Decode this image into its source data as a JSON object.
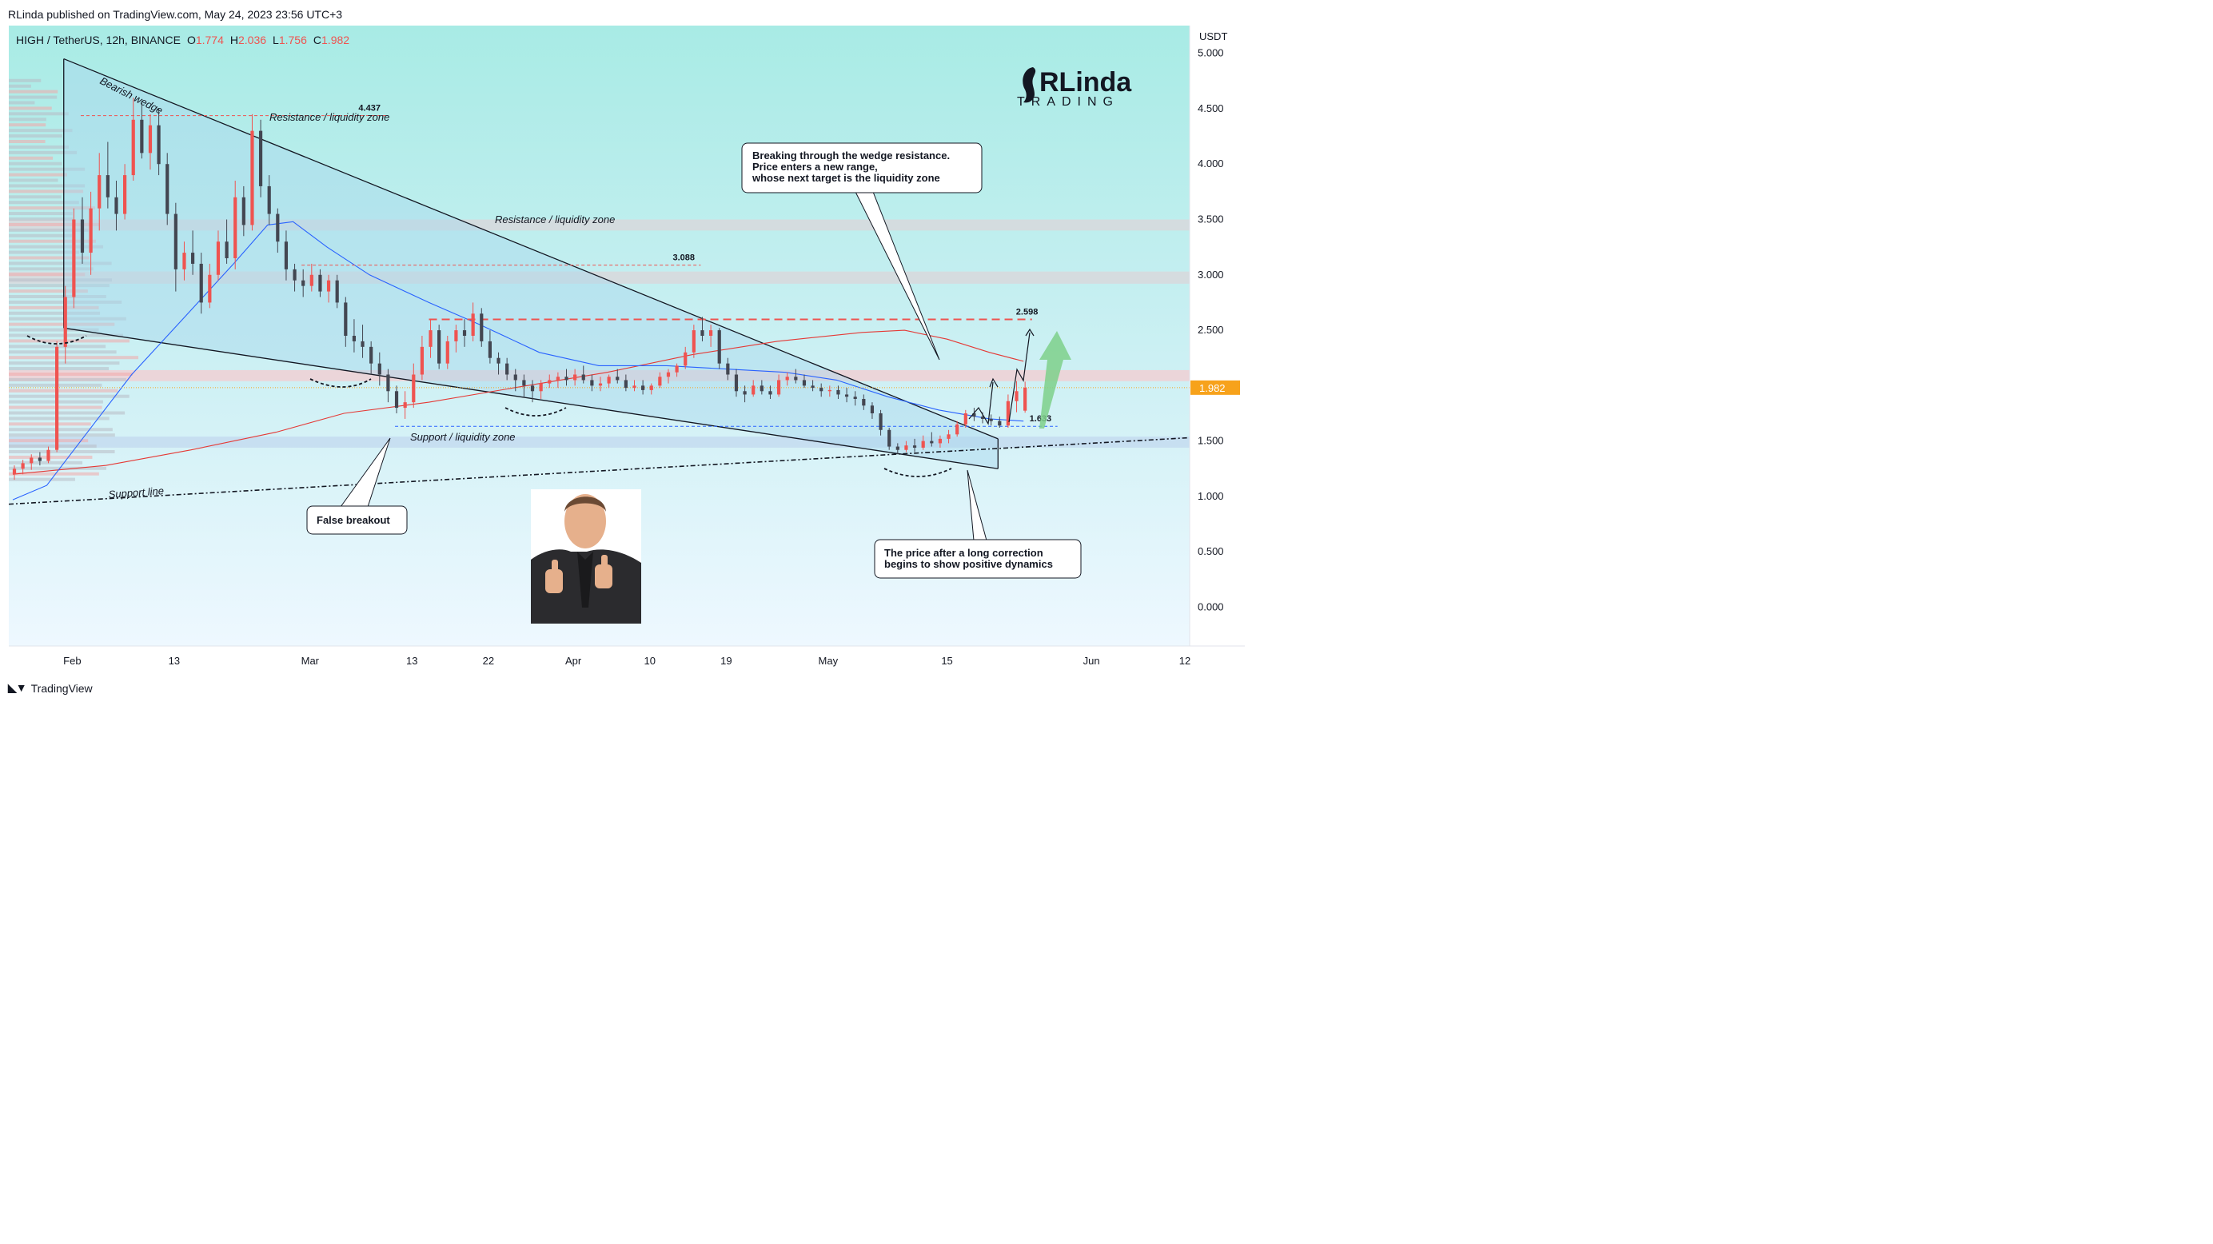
{
  "header": {
    "published": "RLinda published on TradingView.com, May 24, 2023 23:56 UTC+3"
  },
  "footer": {
    "brand": "TradingView"
  },
  "logo": {
    "top": "RLinda",
    "bottom": "TRADING"
  },
  "chart_data": {
    "type": "candlestick",
    "symbol": "HIGH / TetherUS, 12h, BINANCE",
    "ohlc_label": {
      "o_key": "O",
      "o": "1.774",
      "h_key": "H",
      "h": "2.036",
      "l_key": "L",
      "l": "1.756",
      "c_key": "C",
      "c": "1.982"
    },
    "currency": "USDT",
    "ylim": [
      -0.35,
      5.25
    ],
    "y_ticks": [
      "5.000",
      "4.500",
      "4.000",
      "3.500",
      "3.000",
      "2.500",
      "2.000",
      "1.500",
      "1.000",
      "0.500",
      "0.000"
    ],
    "x_ticks": [
      {
        "label": "Feb",
        "date": "2023-02-01"
      },
      {
        "label": "13",
        "date": "2023-02-13"
      },
      {
        "label": "Mar",
        "date": "2023-03-01"
      },
      {
        "label": "13",
        "date": "2023-03-13"
      },
      {
        "label": "22",
        "date": "2023-03-22"
      },
      {
        "label": "Apr",
        "date": "2023-04-01"
      },
      {
        "label": "10",
        "date": "2023-04-10"
      },
      {
        "label": "19",
        "date": "2023-04-19"
      },
      {
        "label": "May",
        "date": "2023-05-01"
      },
      {
        "label": "15",
        "date": "2023-05-15"
      },
      {
        "label": "Jun",
        "date": "2023-06-01"
      },
      {
        "label": "12",
        "date": "2023-06-12"
      }
    ],
    "current_price": "1.982",
    "levels": [
      {
        "value": 4.437,
        "label": "4.437",
        "color": "#ef5350",
        "from": "2023-02-02",
        "to": "2023-03-10"
      },
      {
        "value": 3.088,
        "label": "3.088",
        "color": "#ef5350",
        "from": "2023-02-28",
        "to": "2023-04-16"
      },
      {
        "value": 2.598,
        "label": "2.598",
        "color": "#ef5350",
        "from": "2023-03-15",
        "to": "2023-05-25"
      },
      {
        "value": 1.633,
        "label": "1.633",
        "color": "#2962ff",
        "from": "2023-03-11",
        "to": "2023-05-28"
      }
    ],
    "zones": [
      {
        "low": 3.4,
        "high": 3.5,
        "color": "#d8d8dc"
      },
      {
        "low": 2.92,
        "high": 3.03,
        "color": "#d8d8dc"
      },
      {
        "low": 2.04,
        "high": 2.14,
        "color": "#f0d0d4"
      },
      {
        "low": 1.44,
        "high": 1.54,
        "color": "#c4dcf0"
      }
    ],
    "candles": [
      [
        "2023-01-25",
        1.2,
        1.28,
        1.15,
        1.25
      ],
      [
        "2023-01-26",
        1.25,
        1.33,
        1.2,
        1.3
      ],
      [
        "2023-01-27",
        1.3,
        1.38,
        1.24,
        1.35
      ],
      [
        "2023-01-28",
        1.35,
        1.4,
        1.28,
        1.32
      ],
      [
        "2023-01-29",
        1.32,
        1.45,
        1.3,
        1.42
      ],
      [
        "2023-01-30",
        1.42,
        2.4,
        1.4,
        2.35
      ],
      [
        "2023-01-31",
        2.35,
        2.9,
        2.2,
        2.8
      ],
      [
        "2023-02-01",
        2.8,
        3.6,
        2.7,
        3.5
      ],
      [
        "2023-02-02",
        3.5,
        3.7,
        3.1,
        3.2
      ],
      [
        "2023-02-03",
        3.2,
        3.75,
        3.0,
        3.6
      ],
      [
        "2023-02-04",
        3.6,
        4.1,
        3.4,
        3.9
      ],
      [
        "2023-02-05",
        3.9,
        4.2,
        3.6,
        3.7
      ],
      [
        "2023-02-06",
        3.7,
        3.85,
        3.4,
        3.55
      ],
      [
        "2023-02-07",
        3.55,
        4.0,
        3.5,
        3.9
      ],
      [
        "2023-02-08",
        3.9,
        4.6,
        3.85,
        4.4
      ],
      [
        "2023-02-09",
        4.4,
        4.55,
        4.05,
        4.1
      ],
      [
        "2023-02-10",
        4.1,
        4.45,
        3.95,
        4.35
      ],
      [
        "2023-02-11",
        4.35,
        4.5,
        3.9,
        4.0
      ],
      [
        "2023-02-12",
        4.0,
        4.1,
        3.45,
        3.55
      ],
      [
        "2023-02-13",
        3.55,
        3.65,
        2.85,
        3.05
      ],
      [
        "2023-02-14",
        3.05,
        3.3,
        2.95,
        3.2
      ],
      [
        "2023-02-15",
        3.2,
        3.4,
        3.0,
        3.1
      ],
      [
        "2023-02-16",
        3.1,
        3.2,
        2.65,
        2.75
      ],
      [
        "2023-02-17",
        2.75,
        3.1,
        2.7,
        3.0
      ],
      [
        "2023-02-18",
        3.0,
        3.4,
        2.95,
        3.3
      ],
      [
        "2023-02-19",
        3.3,
        3.5,
        3.1,
        3.15
      ],
      [
        "2023-02-20",
        3.15,
        3.85,
        3.05,
        3.7
      ],
      [
        "2023-02-21",
        3.7,
        3.8,
        3.35,
        3.45
      ],
      [
        "2023-02-22",
        3.45,
        4.45,
        3.4,
        4.3
      ],
      [
        "2023-02-23",
        4.3,
        4.4,
        3.7,
        3.8
      ],
      [
        "2023-02-24",
        3.8,
        3.9,
        3.45,
        3.55
      ],
      [
        "2023-02-25",
        3.55,
        3.6,
        3.2,
        3.3
      ],
      [
        "2023-02-26",
        3.3,
        3.4,
        2.95,
        3.05
      ],
      [
        "2023-02-27",
        3.05,
        3.1,
        2.85,
        2.95
      ],
      [
        "2023-02-28",
        2.95,
        3.05,
        2.8,
        2.9
      ],
      [
        "2023-03-01",
        2.9,
        3.1,
        2.85,
        3.0
      ],
      [
        "2023-03-02",
        3.0,
        3.05,
        2.8,
        2.85
      ],
      [
        "2023-03-03",
        2.85,
        3.0,
        2.75,
        2.95
      ],
      [
        "2023-03-04",
        2.95,
        3.0,
        2.7,
        2.75
      ],
      [
        "2023-03-05",
        2.75,
        2.8,
        2.35,
        2.45
      ],
      [
        "2023-03-06",
        2.45,
        2.6,
        2.3,
        2.4
      ],
      [
        "2023-03-07",
        2.4,
        2.55,
        2.25,
        2.35
      ],
      [
        "2023-03-08",
        2.35,
        2.4,
        2.1,
        2.2
      ],
      [
        "2023-03-09",
        2.2,
        2.3,
        2.0,
        2.1
      ],
      [
        "2023-03-10",
        2.1,
        2.15,
        1.85,
        1.95
      ],
      [
        "2023-03-11",
        1.95,
        2.0,
        1.75,
        1.8
      ],
      [
        "2023-03-12",
        1.8,
        1.95,
        1.7,
        1.85
      ],
      [
        "2023-03-13",
        1.85,
        2.2,
        1.8,
        2.1
      ],
      [
        "2023-03-14",
        2.1,
        2.45,
        2.05,
        2.35
      ],
      [
        "2023-03-15",
        2.35,
        2.6,
        2.25,
        2.5
      ],
      [
        "2023-03-16",
        2.5,
        2.55,
        2.15,
        2.2
      ],
      [
        "2023-03-17",
        2.2,
        2.45,
        2.15,
        2.4
      ],
      [
        "2023-03-18",
        2.4,
        2.55,
        2.3,
        2.5
      ],
      [
        "2023-03-19",
        2.5,
        2.6,
        2.35,
        2.45
      ],
      [
        "2023-03-20",
        2.45,
        2.75,
        2.4,
        2.65
      ],
      [
        "2023-03-21",
        2.65,
        2.7,
        2.35,
        2.4
      ],
      [
        "2023-03-22",
        2.4,
        2.5,
        2.2,
        2.25
      ],
      [
        "2023-03-23",
        2.25,
        2.3,
        2.1,
        2.2
      ],
      [
        "2023-03-24",
        2.2,
        2.25,
        2.05,
        2.1
      ],
      [
        "2023-03-25",
        2.1,
        2.15,
        1.95,
        2.05
      ],
      [
        "2023-03-26",
        2.05,
        2.1,
        1.9,
        2.0
      ],
      [
        "2023-03-27",
        2.0,
        2.05,
        1.85,
        1.95
      ],
      [
        "2023-03-28",
        1.95,
        2.05,
        1.88,
        2.02
      ],
      [
        "2023-03-29",
        2.02,
        2.1,
        1.98,
        2.05
      ],
      [
        "2023-03-30",
        2.05,
        2.12,
        1.98,
        2.08
      ],
      [
        "2023-03-31",
        2.08,
        2.15,
        2.0,
        2.05
      ],
      [
        "2023-04-01",
        2.05,
        2.15,
        2.0,
        2.1
      ],
      [
        "2023-04-02",
        2.1,
        2.18,
        2.02,
        2.05
      ],
      [
        "2023-04-03",
        2.05,
        2.1,
        1.95,
        2.0
      ],
      [
        "2023-04-04",
        2.0,
        2.08,
        1.95,
        2.02
      ],
      [
        "2023-04-05",
        2.02,
        2.1,
        1.98,
        2.08
      ],
      [
        "2023-04-06",
        2.08,
        2.15,
        2.02,
        2.05
      ],
      [
        "2023-04-07",
        2.05,
        2.1,
        1.95,
        1.98
      ],
      [
        "2023-04-08",
        1.98,
        2.05,
        1.95,
        2.0
      ],
      [
        "2023-04-09",
        2.0,
        2.05,
        1.92,
        1.96
      ],
      [
        "2023-04-10",
        1.96,
        2.02,
        1.92,
        2.0
      ],
      [
        "2023-04-11",
        2.0,
        2.12,
        1.98,
        2.08
      ],
      [
        "2023-04-12",
        2.08,
        2.15,
        2.02,
        2.12
      ],
      [
        "2023-04-13",
        2.12,
        2.2,
        2.08,
        2.18
      ],
      [
        "2023-04-14",
        2.18,
        2.35,
        2.15,
        2.3
      ],
      [
        "2023-04-15",
        2.3,
        2.55,
        2.25,
        2.5
      ],
      [
        "2023-04-16",
        2.5,
        2.62,
        2.4,
        2.45
      ],
      [
        "2023-04-17",
        2.45,
        2.55,
        2.35,
        2.5
      ],
      [
        "2023-04-18",
        2.5,
        2.52,
        2.15,
        2.2
      ],
      [
        "2023-04-19",
        2.2,
        2.25,
        2.05,
        2.1
      ],
      [
        "2023-04-20",
        2.1,
        2.15,
        1.9,
        1.95
      ],
      [
        "2023-04-21",
        1.95,
        2.0,
        1.85,
        1.92
      ],
      [
        "2023-04-22",
        1.92,
        2.05,
        1.9,
        2.0
      ],
      [
        "2023-04-23",
        2.0,
        2.05,
        1.92,
        1.95
      ],
      [
        "2023-04-24",
        1.95,
        2.0,
        1.88,
        1.92
      ],
      [
        "2023-04-25",
        1.92,
        2.1,
        1.9,
        2.05
      ],
      [
        "2023-04-26",
        2.05,
        2.12,
        2.0,
        2.08
      ],
      [
        "2023-04-27",
        2.08,
        2.15,
        2.02,
        2.05
      ],
      [
        "2023-04-28",
        2.05,
        2.1,
        1.98,
        2.0
      ],
      [
        "2023-04-29",
        2.0,
        2.05,
        1.95,
        1.98
      ],
      [
        "2023-04-30",
        1.98,
        2.02,
        1.9,
        1.95
      ],
      [
        "2023-05-01",
        1.95,
        2.0,
        1.9,
        1.96
      ],
      [
        "2023-05-02",
        1.96,
        2.0,
        1.88,
        1.92
      ],
      [
        "2023-05-03",
        1.92,
        1.98,
        1.85,
        1.9
      ],
      [
        "2023-05-04",
        1.9,
        1.95,
        1.82,
        1.88
      ],
      [
        "2023-05-05",
        1.88,
        1.92,
        1.78,
        1.82
      ],
      [
        "2023-05-06",
        1.82,
        1.85,
        1.7,
        1.75
      ],
      [
        "2023-05-07",
        1.75,
        1.78,
        1.55,
        1.6
      ],
      [
        "2023-05-08",
        1.6,
        1.62,
        1.42,
        1.45
      ],
      [
        "2023-05-09",
        1.45,
        1.48,
        1.38,
        1.42
      ],
      [
        "2023-05-10",
        1.42,
        1.5,
        1.4,
        1.46
      ],
      [
        "2023-05-11",
        1.46,
        1.52,
        1.4,
        1.44
      ],
      [
        "2023-05-12",
        1.44,
        1.55,
        1.42,
        1.5
      ],
      [
        "2023-05-13",
        1.5,
        1.58,
        1.45,
        1.48
      ],
      [
        "2023-05-14",
        1.48,
        1.55,
        1.44,
        1.52
      ],
      [
        "2023-05-15",
        1.52,
        1.6,
        1.48,
        1.56
      ],
      [
        "2023-05-16",
        1.56,
        1.68,
        1.54,
        1.65
      ],
      [
        "2023-05-17",
        1.65,
        1.78,
        1.62,
        1.75
      ],
      [
        "2023-05-18",
        1.75,
        1.8,
        1.68,
        1.72
      ],
      [
        "2023-05-19",
        1.72,
        1.76,
        1.66,
        1.7
      ],
      [
        "2023-05-20",
        1.7,
        1.74,
        1.64,
        1.68
      ],
      [
        "2023-05-21",
        1.68,
        1.72,
        1.62,
        1.64
      ],
      [
        "2023-05-22",
        1.64,
        1.92,
        1.62,
        1.86
      ],
      [
        "2023-05-23",
        1.86,
        2.04,
        1.76,
        1.95
      ],
      [
        "2023-05-24",
        1.774,
        2.036,
        1.756,
        1.982
      ]
    ],
    "ma_blue": [
      [
        "2023-01-25",
        0.97
      ],
      [
        "2023-01-29",
        1.1
      ],
      [
        "2023-02-02",
        1.5
      ],
      [
        "2023-02-08",
        2.1
      ],
      [
        "2023-02-14",
        2.6
      ],
      [
        "2023-02-20",
        3.1
      ],
      [
        "2023-02-24",
        3.45
      ],
      [
        "2023-02-27",
        3.48
      ],
      [
        "2023-03-03",
        3.25
      ],
      [
        "2023-03-08",
        3.0
      ],
      [
        "2023-03-15",
        2.75
      ],
      [
        "2023-03-21",
        2.55
      ],
      [
        "2023-03-28",
        2.3
      ],
      [
        "2023-04-04",
        2.18
      ],
      [
        "2023-04-12",
        2.18
      ],
      [
        "2023-04-19",
        2.15
      ],
      [
        "2023-04-26",
        2.12
      ],
      [
        "2023-05-02",
        2.05
      ],
      [
        "2023-05-08",
        1.9
      ],
      [
        "2023-05-14",
        1.78
      ],
      [
        "2023-05-20",
        1.7
      ],
      [
        "2023-05-24",
        1.68
      ]
    ],
    "ma_red": [
      [
        "2023-01-25",
        1.2
      ],
      [
        "2023-02-05",
        1.28
      ],
      [
        "2023-02-15",
        1.42
      ],
      [
        "2023-02-25",
        1.58
      ],
      [
        "2023-03-05",
        1.75
      ],
      [
        "2023-03-15",
        1.85
      ],
      [
        "2023-03-25",
        1.98
      ],
      [
        "2023-04-05",
        2.12
      ],
      [
        "2023-04-15",
        2.28
      ],
      [
        "2023-04-25",
        2.4
      ],
      [
        "2023-05-05",
        2.48
      ],
      [
        "2023-05-10",
        2.5
      ],
      [
        "2023-05-15",
        2.42
      ],
      [
        "2023-05-20",
        2.3
      ],
      [
        "2023-05-24",
        2.22
      ]
    ],
    "annotations": {
      "bearish_wedge": "Bearish wedge",
      "resistance_1": "Resistance / liquidity zone",
      "resistance_2": "Resistance / liquidity zone",
      "support_zone": "Support / liquidity zone",
      "support_line": "Support line",
      "false_breakout": "False breakout",
      "breaking_1": "Breaking through the wedge resistance.",
      "breaking_2": "Price enters a new range,",
      "breaking_3": "whose next target is the liquidity zone",
      "positive_1": "The price after a long correction",
      "positive_2": "begins to show positive dynamics"
    }
  },
  "colors": {
    "bull": "#ef5350",
    "bear": "#434651",
    "background_top": "#b2ebe4",
    "background_bottom": "#e4f4ff"
  }
}
